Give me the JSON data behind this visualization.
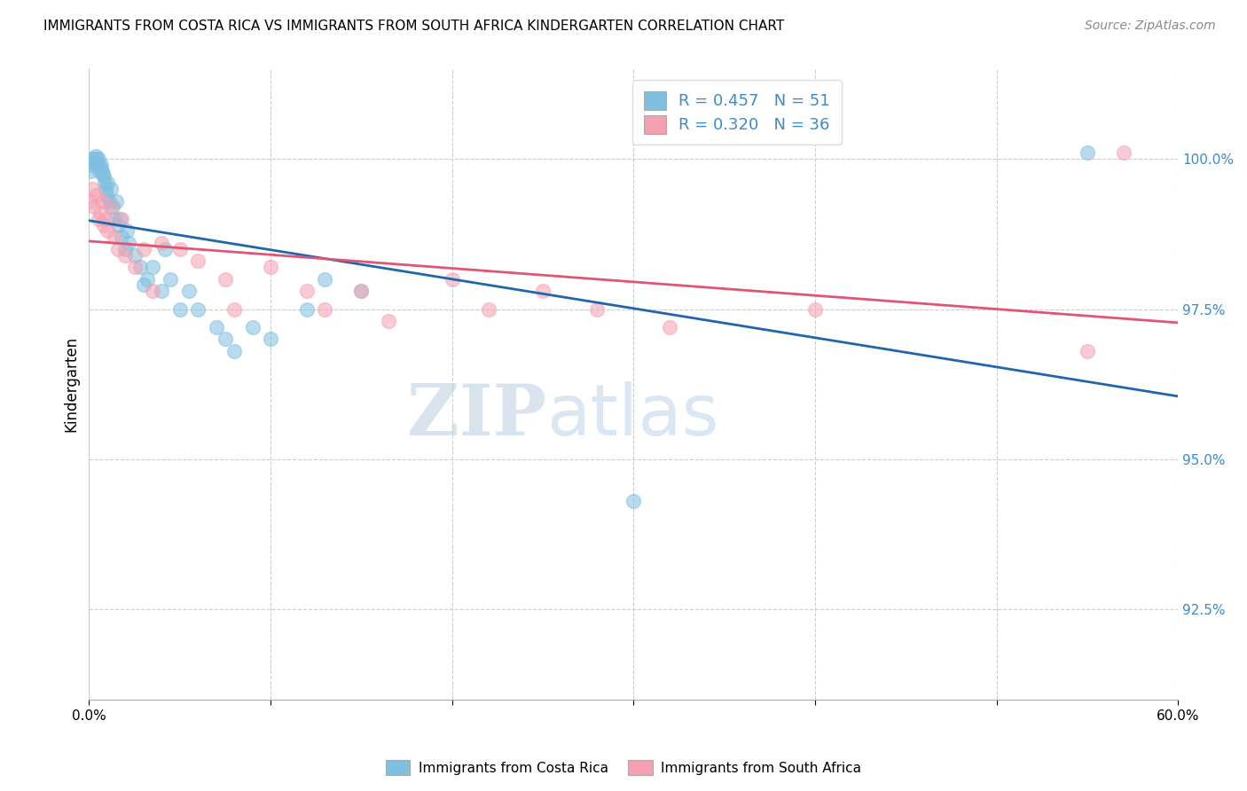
{
  "title": "IMMIGRANTS FROM COSTA RICA VS IMMIGRANTS FROM SOUTH AFRICA KINDERGARTEN CORRELATION CHART",
  "source": "Source: ZipAtlas.com",
  "ylabel": "Kindergarten",
  "legend_label1": "Immigrants from Costa Rica",
  "legend_label2": "Immigrants from South Africa",
  "R1": 0.457,
  "N1": 51,
  "R2": 0.32,
  "N2": 36,
  "color1": "#7fbfdf",
  "color2": "#f4a0b0",
  "trendline1_color": "#2166ac",
  "trendline2_color": "#e05575",
  "xmin": 0.0,
  "xmax": 60.0,
  "ymin": 91.0,
  "ymax": 101.5,
  "yticks": [
    92.5,
    95.0,
    97.5,
    100.0
  ],
  "ytick_labels": [
    "92.5%",
    "95.0%",
    "97.5%",
    "100.0%"
  ],
  "xticks": [
    0.0,
    10.0,
    20.0,
    30.0,
    40.0,
    50.0,
    60.0
  ],
  "watermark_zip": "ZIP",
  "watermark_atlas": "atlas",
  "costa_rica_x": [
    0.1,
    0.15,
    0.2,
    0.25,
    0.3,
    0.35,
    0.4,
    0.45,
    0.5,
    0.55,
    0.6,
    0.65,
    0.7,
    0.75,
    0.8,
    0.85,
    0.9,
    0.95,
    1.0,
    1.1,
    1.2,
    1.3,
    1.4,
    1.5,
    1.6,
    1.7,
    1.8,
    2.0,
    2.1,
    2.2,
    2.5,
    2.8,
    3.0,
    3.2,
    3.5,
    4.0,
    4.2,
    4.5,
    5.0,
    5.5,
    6.0,
    7.0,
    7.5,
    8.0,
    9.0,
    10.0,
    12.0,
    13.0,
    15.0,
    30.0,
    55.0
  ],
  "costa_rica_y": [
    99.8,
    100.0,
    99.9,
    99.95,
    100.0,
    100.05,
    100.0,
    99.9,
    100.0,
    99.8,
    99.85,
    99.9,
    99.8,
    99.75,
    99.7,
    99.6,
    99.5,
    99.4,
    99.6,
    99.3,
    99.5,
    99.2,
    99.0,
    99.3,
    98.9,
    99.0,
    98.7,
    98.5,
    98.8,
    98.6,
    98.4,
    98.2,
    97.9,
    98.0,
    98.2,
    97.8,
    98.5,
    98.0,
    97.5,
    97.8,
    97.5,
    97.2,
    97.0,
    96.8,
    97.2,
    97.0,
    97.5,
    98.0,
    97.8,
    94.3,
    100.1
  ],
  "south_africa_x": [
    0.1,
    0.2,
    0.3,
    0.4,
    0.5,
    0.6,
    0.7,
    0.8,
    0.9,
    1.0,
    1.2,
    1.4,
    1.6,
    1.8,
    2.0,
    2.5,
    3.0,
    3.5,
    4.0,
    5.0,
    6.0,
    7.5,
    8.0,
    10.0,
    12.0,
    13.0,
    15.0,
    16.5,
    20.0,
    22.0,
    25.0,
    28.0,
    32.0,
    40.0,
    55.0,
    57.0
  ],
  "south_africa_y": [
    99.3,
    99.5,
    99.2,
    99.4,
    99.0,
    99.1,
    99.3,
    98.9,
    99.0,
    98.8,
    99.2,
    98.7,
    98.5,
    99.0,
    98.4,
    98.2,
    98.5,
    97.8,
    98.6,
    98.5,
    98.3,
    98.0,
    97.5,
    98.2,
    97.8,
    97.5,
    97.8,
    97.3,
    98.0,
    97.5,
    97.8,
    97.5,
    97.2,
    97.5,
    96.8,
    100.1
  ]
}
